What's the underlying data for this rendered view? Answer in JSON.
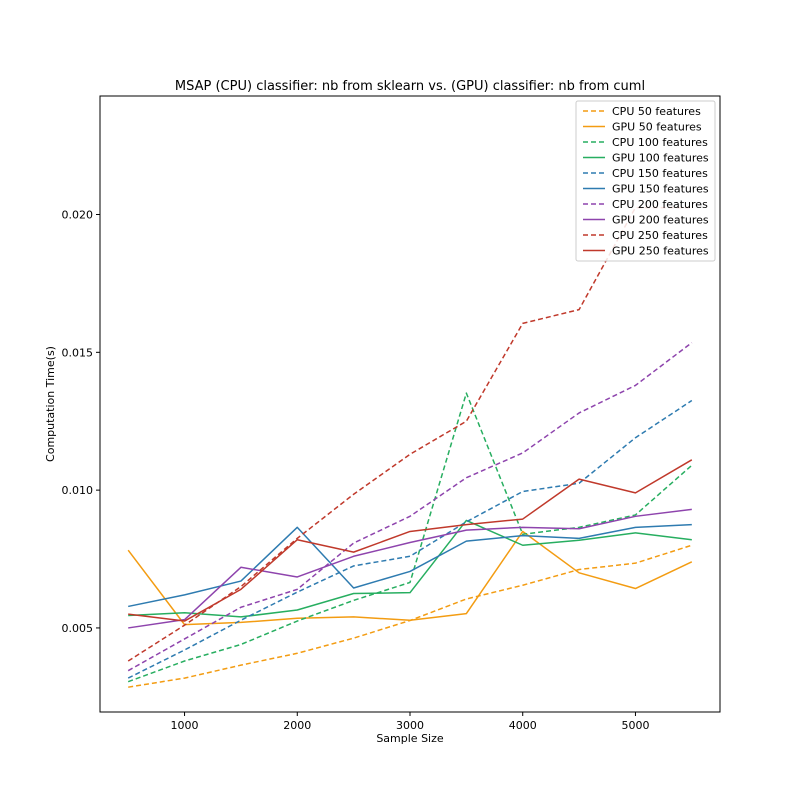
{
  "chart_data": {
    "type": "line",
    "title": "MSAP (CPU) classifier: nb from sklearn vs. (GPU) classifier: nb from cuml",
    "xlabel": "Sample Size",
    "ylabel": "Computation Time(s)",
    "xlim": [
      250,
      5750
    ],
    "ylim": [
      0.00195,
      0.0243
    ],
    "x_ticks": [
      1000,
      2000,
      3000,
      4000,
      5000
    ],
    "x_tick_labels": [
      "1000",
      "2000",
      "3000",
      "4000",
      "5000"
    ],
    "y_ticks": [
      0.005,
      0.01,
      0.015,
      0.02
    ],
    "y_tick_labels": [
      "0.005",
      "0.010",
      "0.015",
      "0.020"
    ],
    "grid": false,
    "legend_position": "top-right",
    "x": [
      500,
      1000,
      1500,
      2000,
      2500,
      3000,
      3500,
      4000,
      4500,
      5000,
      5500
    ],
    "series": [
      {
        "name": "CPU 50 features",
        "color": "#f39c12",
        "dashed": true,
        "values": [
          0.00285,
          0.00318,
          0.00365,
          0.00408,
          0.00463,
          0.00527,
          0.00605,
          0.00655,
          0.00712,
          0.00735,
          0.008
        ]
      },
      {
        "name": "GPU 50 features",
        "color": "#f39c12",
        "dashed": false,
        "values": [
          0.00782,
          0.00512,
          0.0052,
          0.00535,
          0.0054,
          0.00528,
          0.00552,
          0.0085,
          0.007,
          0.00643,
          0.0074
        ]
      },
      {
        "name": "CPU 100 features",
        "color": "#27ae60",
        "dashed": true,
        "values": [
          0.00305,
          0.0038,
          0.0044,
          0.00525,
          0.006,
          0.00665,
          0.01352,
          0.0084,
          0.00865,
          0.0091,
          0.0109
        ]
      },
      {
        "name": "GPU 100 features",
        "color": "#27ae60",
        "dashed": false,
        "values": [
          0.00545,
          0.00555,
          0.0054,
          0.00565,
          0.00625,
          0.00628,
          0.0089,
          0.008,
          0.00818,
          0.00845,
          0.0082
        ]
      },
      {
        "name": "CPU 150 features",
        "color": "#2e7bb0",
        "dashed": true,
        "values": [
          0.00318,
          0.0042,
          0.00528,
          0.0063,
          0.00725,
          0.0076,
          0.00885,
          0.00995,
          0.01025,
          0.0119,
          0.01325
        ]
      },
      {
        "name": "GPU 150 features",
        "color": "#2e7bb0",
        "dashed": false,
        "values": [
          0.00578,
          0.0062,
          0.0067,
          0.00865,
          0.00645,
          0.00705,
          0.00815,
          0.00835,
          0.00825,
          0.00865,
          0.00875
        ]
      },
      {
        "name": "CPU 200 features",
        "color": "#8e44ad",
        "dashed": true,
        "values": [
          0.00345,
          0.0046,
          0.00575,
          0.0064,
          0.00808,
          0.00905,
          0.01045,
          0.01135,
          0.0128,
          0.0138,
          0.01535
        ]
      },
      {
        "name": "GPU 200 features",
        "color": "#8e44ad",
        "dashed": false,
        "values": [
          0.005,
          0.0053,
          0.0072,
          0.00685,
          0.0076,
          0.0081,
          0.00855,
          0.00865,
          0.0086,
          0.00905,
          0.0093
        ]
      },
      {
        "name": "CPU 250 features",
        "color": "#c0392b",
        "dashed": true,
        "values": [
          0.0038,
          0.0051,
          0.0065,
          0.00825,
          0.00985,
          0.0113,
          0.0125,
          0.01605,
          0.01655,
          0.02025,
          0.02025
        ]
      },
      {
        "name": "GPU 250 features",
        "color": "#c0392b",
        "dashed": false,
        "values": [
          0.0055,
          0.00525,
          0.0064,
          0.0082,
          0.00775,
          0.0085,
          0.00875,
          0.00895,
          0.0104,
          0.0099,
          0.0111
        ]
      }
    ]
  }
}
